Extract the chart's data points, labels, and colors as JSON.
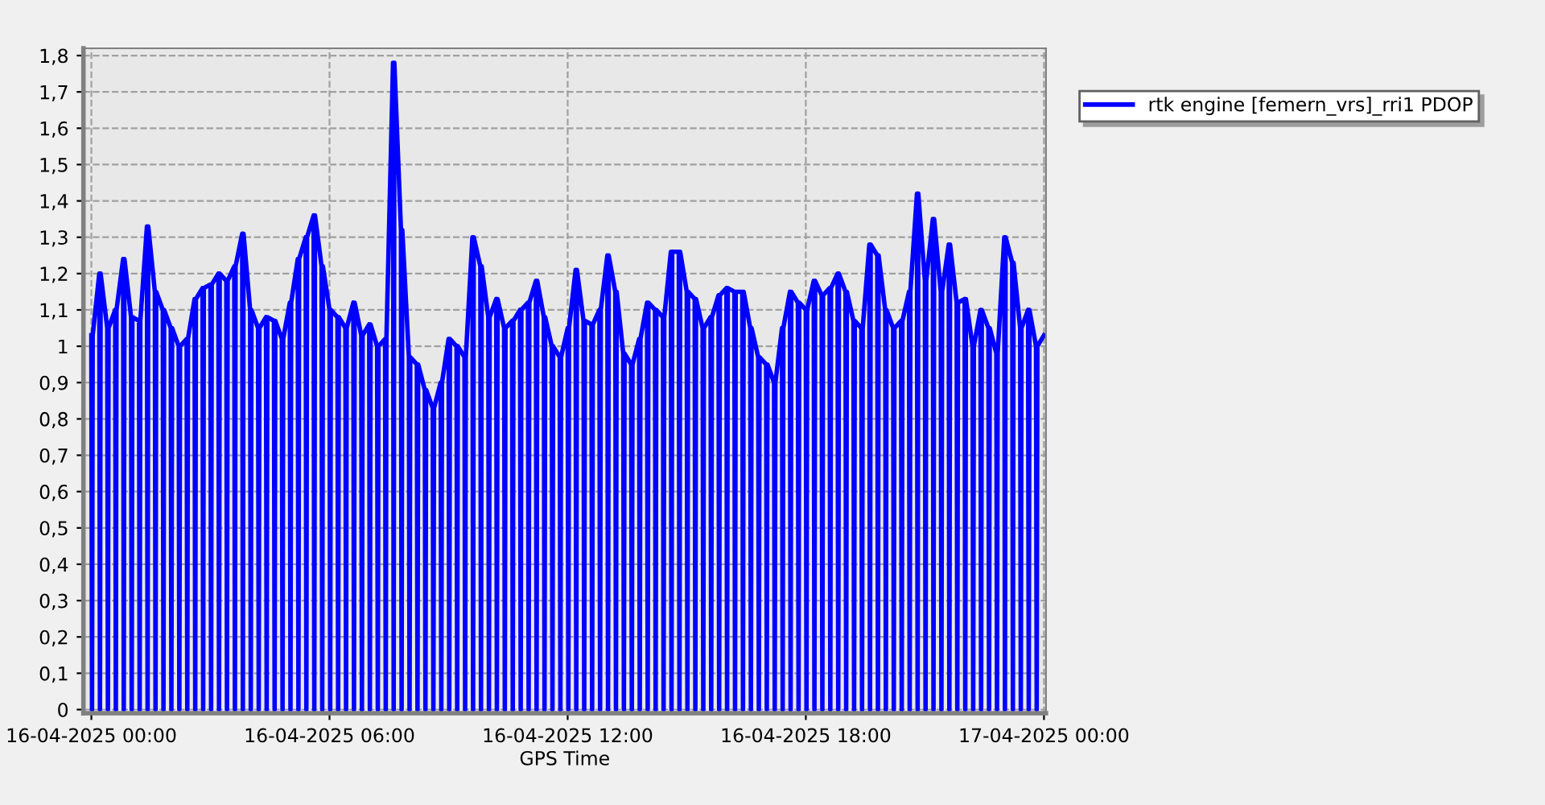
{
  "chart_data": {
    "type": "line",
    "xlabel": "GPS Time",
    "xlim": [
      "2025-04-15T23:48",
      "2025-04-17T00:03"
    ],
    "xticks": [
      {
        "value": "2025-04-16T00:00",
        "label": "16-04-2025 00:00"
      },
      {
        "value": "2025-04-16T06:00",
        "label": "16-04-2025 06:00"
      },
      {
        "value": "2025-04-16T12:00",
        "label": "16-04-2025 12:00"
      },
      {
        "value": "2025-04-16T18:00",
        "label": "16-04-2025 18:00"
      },
      {
        "value": "2025-04-17T00:00",
        "label": "17-04-2025 00:00"
      }
    ],
    "ylim": [
      -0.01,
      1.82
    ],
    "yticks": [
      {
        "value": 0,
        "label": "0"
      },
      {
        "value": 0.1,
        "label": "0,1"
      },
      {
        "value": 0.2,
        "label": "0,2"
      },
      {
        "value": 0.3,
        "label": "0,3"
      },
      {
        "value": 0.4,
        "label": "0,4"
      },
      {
        "value": 0.5,
        "label": "0,5"
      },
      {
        "value": 0.6,
        "label": "0,6"
      },
      {
        "value": 0.7,
        "label": "0,7"
      },
      {
        "value": 0.8,
        "label": "0,8"
      },
      {
        "value": 0.9,
        "label": "0,9"
      },
      {
        "value": 1,
        "label": "1"
      },
      {
        "value": 1.1,
        "label": "1,1"
      },
      {
        "value": 1.2,
        "label": "1,2"
      },
      {
        "value": 1.3,
        "label": "1,3"
      },
      {
        "value": 1.4,
        "label": "1,4"
      },
      {
        "value": 1.5,
        "label": "1,5"
      },
      {
        "value": 1.6,
        "label": "1,6"
      },
      {
        "value": 1.7,
        "label": "1,7"
      },
      {
        "value": 1.8,
        "label": "1,8"
      }
    ],
    "grid": true,
    "legend": "top right",
    "line_style": "solid",
    "marker": "none",
    "series": [
      {
        "name": "rtk engine [femern_vrs]_rri1 PDOP",
        "color": "#0000ff",
        "x": [
          "2025-04-16T00:00",
          "2025-04-16T00:01",
          "2025-04-16T00:02",
          "2025-04-16T00:12",
          "2025-04-16T00:13",
          "2025-04-16T00:14",
          "2025-04-16T00:24",
          "2025-04-16T00:25",
          "2025-04-16T00:26",
          "2025-04-16T00:36",
          "2025-04-16T00:37",
          "2025-04-16T00:38",
          "2025-04-16T00:48",
          "2025-04-16T00:49",
          "2025-04-16T00:50",
          "2025-04-16T01:00",
          "2025-04-16T01:01",
          "2025-04-16T01:02",
          "2025-04-16T01:12",
          "2025-04-16T01:13",
          "2025-04-16T01:14",
          "2025-04-16T01:24",
          "2025-04-16T01:25",
          "2025-04-16T01:26",
          "2025-04-16T01:36",
          "2025-04-16T01:37",
          "2025-04-16T01:38",
          "2025-04-16T01:48",
          "2025-04-16T01:49",
          "2025-04-16T01:50",
          "2025-04-16T02:00",
          "2025-04-16T02:01",
          "2025-04-16T02:02",
          "2025-04-16T02:12",
          "2025-04-16T02:13",
          "2025-04-16T02:14",
          "2025-04-16T02:24",
          "2025-04-16T02:25",
          "2025-04-16T02:26",
          "2025-04-16T02:36",
          "2025-04-16T02:37",
          "2025-04-16T02:38",
          "2025-04-16T02:48",
          "2025-04-16T02:49",
          "2025-04-16T02:50",
          "2025-04-16T03:00",
          "2025-04-16T03:01",
          "2025-04-16T03:02",
          "2025-04-16T03:12",
          "2025-04-16T03:13",
          "2025-04-16T03:14",
          "2025-04-16T03:24",
          "2025-04-16T03:25",
          "2025-04-16T03:26",
          "2025-04-16T03:36",
          "2025-04-16T03:37",
          "2025-04-16T03:38",
          "2025-04-16T03:48",
          "2025-04-16T03:49",
          "2025-04-16T03:50",
          "2025-04-16T04:00",
          "2025-04-16T04:01",
          "2025-04-16T04:02",
          "2025-04-16T04:12",
          "2025-04-16T04:13",
          "2025-04-16T04:14",
          "2025-04-16T04:24",
          "2025-04-16T04:25",
          "2025-04-16T04:26",
          "2025-04-16T04:36",
          "2025-04-16T04:37",
          "2025-04-16T04:38",
          "2025-04-16T04:48",
          "2025-04-16T04:49",
          "2025-04-16T04:50",
          "2025-04-16T05:00",
          "2025-04-16T05:01",
          "2025-04-16T05:02",
          "2025-04-16T05:12",
          "2025-04-16T05:13",
          "2025-04-16T05:14",
          "2025-04-16T05:24",
          "2025-04-16T05:25",
          "2025-04-16T05:26",
          "2025-04-16T05:36",
          "2025-04-16T05:37",
          "2025-04-16T05:38",
          "2025-04-16T05:48",
          "2025-04-16T05:49",
          "2025-04-16T05:50",
          "2025-04-16T06:00",
          "2025-04-16T06:01",
          "2025-04-16T06:02",
          "2025-04-16T06:12",
          "2025-04-16T06:13",
          "2025-04-16T06:14",
          "2025-04-16T06:24",
          "2025-04-16T06:25",
          "2025-04-16T06:26",
          "2025-04-16T06:36",
          "2025-04-16T06:37",
          "2025-04-16T06:38",
          "2025-04-16T06:48",
          "2025-04-16T06:49",
          "2025-04-16T06:50",
          "2025-04-16T07:00",
          "2025-04-16T07:01",
          "2025-04-16T07:02",
          "2025-04-16T07:12",
          "2025-04-16T07:13",
          "2025-04-16T07:14",
          "2025-04-16T07:24",
          "2025-04-16T07:25",
          "2025-04-16T07:26",
          "2025-04-16T07:36",
          "2025-04-16T07:37",
          "2025-04-16T07:38",
          "2025-04-16T07:48",
          "2025-04-16T07:49",
          "2025-04-16T07:50",
          "2025-04-16T08:00",
          "2025-04-16T08:01",
          "2025-04-16T08:02",
          "2025-04-16T08:12",
          "2025-04-16T08:13",
          "2025-04-16T08:14",
          "2025-04-16T08:24",
          "2025-04-16T08:25",
          "2025-04-16T08:26",
          "2025-04-16T08:36",
          "2025-04-16T08:37",
          "2025-04-16T08:38",
          "2025-04-16T08:48",
          "2025-04-16T08:49",
          "2025-04-16T08:50",
          "2025-04-16T09:00",
          "2025-04-16T09:01",
          "2025-04-16T09:02",
          "2025-04-16T09:12",
          "2025-04-16T09:13",
          "2025-04-16T09:14",
          "2025-04-16T09:24",
          "2025-04-16T09:25",
          "2025-04-16T09:26",
          "2025-04-16T09:36",
          "2025-04-16T09:37",
          "2025-04-16T09:38",
          "2025-04-16T09:48",
          "2025-04-16T09:49",
          "2025-04-16T09:50",
          "2025-04-16T10:00",
          "2025-04-16T10:01",
          "2025-04-16T10:02",
          "2025-04-16T10:12",
          "2025-04-16T10:13",
          "2025-04-16T10:14",
          "2025-04-16T10:24",
          "2025-04-16T10:25",
          "2025-04-16T10:26",
          "2025-04-16T10:36",
          "2025-04-16T10:37",
          "2025-04-16T10:38",
          "2025-04-16T10:48",
          "2025-04-16T10:49",
          "2025-04-16T10:50",
          "2025-04-16T11:00",
          "2025-04-16T11:01",
          "2025-04-16T11:02",
          "2025-04-16T11:12",
          "2025-04-16T11:13",
          "2025-04-16T11:14",
          "2025-04-16T11:24",
          "2025-04-16T11:25",
          "2025-04-16T11:26",
          "2025-04-16T11:36",
          "2025-04-16T11:37",
          "2025-04-16T11:38",
          "2025-04-16T11:48",
          "2025-04-16T11:49",
          "2025-04-16T11:50",
          "2025-04-16T12:00",
          "2025-04-16T12:01",
          "2025-04-16T12:02",
          "2025-04-16T12:12",
          "2025-04-16T12:13",
          "2025-04-16T12:14",
          "2025-04-16T12:24",
          "2025-04-16T12:25",
          "2025-04-16T12:26",
          "2025-04-16T12:36",
          "2025-04-16T12:37",
          "2025-04-16T12:38",
          "2025-04-16T12:48",
          "2025-04-16T12:49",
          "2025-04-16T12:50",
          "2025-04-16T13:00",
          "2025-04-16T13:01",
          "2025-04-16T13:02",
          "2025-04-16T13:12",
          "2025-04-16T13:13",
          "2025-04-16T13:14",
          "2025-04-16T13:24",
          "2025-04-16T13:25",
          "2025-04-16T13:26",
          "2025-04-16T13:36",
          "2025-04-16T13:37",
          "2025-04-16T13:38",
          "2025-04-16T13:48",
          "2025-04-16T13:49",
          "2025-04-16T13:50",
          "2025-04-16T14:00",
          "2025-04-16T14:01",
          "2025-04-16T14:02",
          "2025-04-16T14:12",
          "2025-04-16T14:13",
          "2025-04-16T14:14",
          "2025-04-16T14:24",
          "2025-04-16T14:25",
          "2025-04-16T14:26",
          "2025-04-16T14:36",
          "2025-04-16T14:37",
          "2025-04-16T14:38",
          "2025-04-16T14:48",
          "2025-04-16T14:49",
          "2025-04-16T14:50",
          "2025-04-16T15:00",
          "2025-04-16T15:01",
          "2025-04-16T15:02",
          "2025-04-16T15:12",
          "2025-04-16T15:13",
          "2025-04-16T15:14",
          "2025-04-16T15:24",
          "2025-04-16T15:25",
          "2025-04-16T15:26",
          "2025-04-16T15:36",
          "2025-04-16T15:37",
          "2025-04-16T15:38",
          "2025-04-16T15:48",
          "2025-04-16T15:49",
          "2025-04-16T15:50",
          "2025-04-16T16:00",
          "2025-04-16T16:01",
          "2025-04-16T16:02",
          "2025-04-16T16:12",
          "2025-04-16T16:13",
          "2025-04-16T16:14",
          "2025-04-16T16:24",
          "2025-04-16T16:25",
          "2025-04-16T16:26",
          "2025-04-16T16:36",
          "2025-04-16T16:37",
          "2025-04-16T16:38",
          "2025-04-16T16:48",
          "2025-04-16T16:49",
          "2025-04-16T16:50",
          "2025-04-16T17:00",
          "2025-04-16T17:01",
          "2025-04-16T17:02",
          "2025-04-16T17:12",
          "2025-04-16T17:13",
          "2025-04-16T17:14",
          "2025-04-16T17:24",
          "2025-04-16T17:25",
          "2025-04-16T17:26",
          "2025-04-16T17:36",
          "2025-04-16T17:37",
          "2025-04-16T17:38",
          "2025-04-16T17:48",
          "2025-04-16T17:49",
          "2025-04-16T17:50",
          "2025-04-16T18:00",
          "2025-04-16T18:01",
          "2025-04-16T18:02",
          "2025-04-16T18:12",
          "2025-04-16T18:13",
          "2025-04-16T18:14",
          "2025-04-16T18:24",
          "2025-04-16T18:25",
          "2025-04-16T18:26",
          "2025-04-16T18:36",
          "2025-04-16T18:37",
          "2025-04-16T18:38",
          "2025-04-16T18:48",
          "2025-04-16T18:49",
          "2025-04-16T18:50",
          "2025-04-16T19:00",
          "2025-04-16T19:01",
          "2025-04-16T19:02",
          "2025-04-16T19:12",
          "2025-04-16T19:13",
          "2025-04-16T19:14",
          "2025-04-16T19:24",
          "2025-04-16T19:25",
          "2025-04-16T19:26",
          "2025-04-16T19:36",
          "2025-04-16T19:37",
          "2025-04-16T19:38",
          "2025-04-16T19:48",
          "2025-04-16T19:49",
          "2025-04-16T19:50",
          "2025-04-16T20:00",
          "2025-04-16T20:01",
          "2025-04-16T20:02",
          "2025-04-16T20:12",
          "2025-04-16T20:13",
          "2025-04-16T20:14",
          "2025-04-16T20:24",
          "2025-04-16T20:25",
          "2025-04-16T20:26",
          "2025-04-16T20:36",
          "2025-04-16T20:37",
          "2025-04-16T20:38",
          "2025-04-16T20:48",
          "2025-04-16T20:49",
          "2025-04-16T20:50",
          "2025-04-16T21:00",
          "2025-04-16T21:01",
          "2025-04-16T21:02",
          "2025-04-16T21:12",
          "2025-04-16T21:13",
          "2025-04-16T21:14",
          "2025-04-16T21:24",
          "2025-04-16T21:25",
          "2025-04-16T21:26",
          "2025-04-16T21:36",
          "2025-04-16T21:37",
          "2025-04-16T21:38",
          "2025-04-16T21:48",
          "2025-04-16T21:49",
          "2025-04-16T21:50",
          "2025-04-16T22:00",
          "2025-04-16T22:01",
          "2025-04-16T22:02",
          "2025-04-16T22:12",
          "2025-04-16T22:13",
          "2025-04-16T22:14",
          "2025-04-16T22:24",
          "2025-04-16T22:25",
          "2025-04-16T22:26",
          "2025-04-16T22:36",
          "2025-04-16T22:37",
          "2025-04-16T22:38",
          "2025-04-16T22:48",
          "2025-04-16T22:49",
          "2025-04-16T22:50",
          "2025-04-16T23:00",
          "2025-04-16T23:01",
          "2025-04-16T23:02",
          "2025-04-16T23:12",
          "2025-04-16T23:13",
          "2025-04-16T23:14",
          "2025-04-16T23:24",
          "2025-04-16T23:25",
          "2025-04-16T23:26",
          "2025-04-16T23:36",
          "2025-04-16T23:37",
          "2025-04-16T23:38",
          "2025-04-16T23:48",
          "2025-04-16T23:49",
          "2025-04-16T23:50",
          "2025-04-17T00:00"
        ],
        "values": [
          1.03,
          0,
          1.03,
          1.2,
          0,
          1.2,
          1.05,
          0,
          1.05,
          1.1,
          0,
          1.1,
          1.24,
          0,
          1.24,
          1.08,
          0,
          1.08,
          1.07,
          0,
          1.07,
          1.33,
          0,
          1.33,
          1.15,
          0,
          1.15,
          1.1,
          0,
          1.1,
          1.05,
          0,
          1.05,
          1,
          0,
          1,
          1.02,
          0,
          1.02,
          1.13,
          0,
          1.13,
          1.16,
          0,
          1.16,
          1.17,
          0,
          1.17,
          1.2,
          0,
          1.2,
          1.18,
          0,
          1.18,
          1.22,
          0,
          1.22,
          1.31,
          0,
          1.31,
          1.1,
          0,
          1.1,
          1.05,
          0,
          1.05,
          1.08,
          0,
          1.08,
          1.07,
          0,
          1.07,
          1.02,
          0,
          1.02,
          1.12,
          0,
          1.12,
          1.24,
          0,
          1.24,
          1.3,
          0,
          1.3,
          1.36,
          0,
          1.36,
          1.22,
          0,
          1.22,
          1.1,
          0,
          1.1,
          1.08,
          0,
          1.08,
          1.05,
          0,
          1.05,
          1.12,
          0,
          1.12,
          1.03,
          0,
          1.03,
          1.06,
          0,
          1.06,
          1,
          0,
          1,
          1.02,
          0,
          1.02,
          1.78,
          0,
          1.78,
          1.32,
          0,
          1.32,
          0.97,
          0,
          0.97,
          0.95,
          0,
          0.95,
          0.88,
          0,
          0.88,
          0.83,
          0,
          0.83,
          0.9,
          0,
          0.9,
          1.02,
          0,
          1.02,
          1,
          0,
          1,
          0.97,
          0,
          0.97,
          1.3,
          0,
          1.3,
          1.22,
          0,
          1.22,
          1.08,
          0,
          1.08,
          1.13,
          0,
          1.13,
          1.05,
          0,
          1.05,
          1.07,
          0,
          1.07,
          1.1,
          0,
          1.1,
          1.12,
          0,
          1.12,
          1.18,
          0,
          1.18,
          1.08,
          0,
          1.08,
          1,
          0,
          1,
          0.97,
          0,
          0.97,
          1.05,
          0,
          1.05,
          1.21,
          0,
          1.21,
          1.07,
          0,
          1.07,
          1.06,
          0,
          1.06,
          1.1,
          0,
          1.1,
          1.25,
          0,
          1.25,
          1.15,
          0,
          1.15,
          0.98,
          0,
          0.98,
          0.95,
          0,
          0.95,
          1.02,
          0,
          1.02,
          1.12,
          0,
          1.12,
          1.1,
          0,
          1.1,
          1.08,
          0,
          1.08,
          1.26,
          0,
          1.26,
          1.26,
          0,
          1.26,
          1.15,
          0,
          1.15,
          1.13,
          0,
          1.13,
          1.05,
          0,
          1.05,
          1.08,
          0,
          1.08,
          1.14,
          0,
          1.14,
          1.16,
          0,
          1.16,
          1.15,
          0,
          1.15,
          1.15,
          0,
          1.15,
          1.05,
          0,
          1.05,
          0.97,
          0,
          0.97,
          0.95,
          0,
          0.95,
          0.9,
          0,
          0.9,
          1.05,
          0,
          1.05,
          1.15,
          0,
          1.15,
          1.12,
          0,
          1.12,
          1.1,
          0,
          1.1,
          1.18,
          0,
          1.18,
          1.14,
          0,
          1.14,
          1.16,
          0,
          1.16,
          1.2,
          0,
          1.2,
          1.15,
          0,
          1.15,
          1.07,
          0,
          1.07,
          1.05,
          0,
          1.05,
          1.28,
          0,
          1.28,
          1.25,
          0,
          1.25,
          1.1,
          0,
          1.1,
          1.05,
          0,
          1.05,
          1.07,
          0,
          1.07,
          1.15,
          0,
          1.15,
          1.42,
          0,
          1.42,
          1.18,
          0,
          1.18,
          1.35,
          0,
          1.35,
          1.15,
          0,
          1.15,
          1.28,
          0,
          1.28,
          1.12,
          0,
          1.12,
          1.13,
          0,
          1.13,
          1,
          0,
          1,
          1.1,
          0,
          1.1,
          1.05,
          0,
          1.05,
          0.98,
          0,
          0.98,
          1.3,
          0,
          1.3,
          1.23,
          0,
          1.23,
          1.05,
          0,
          1.05,
          1.1,
          0,
          1.1,
          1,
          0,
          1,
          1.03
        ]
      }
    ]
  }
}
